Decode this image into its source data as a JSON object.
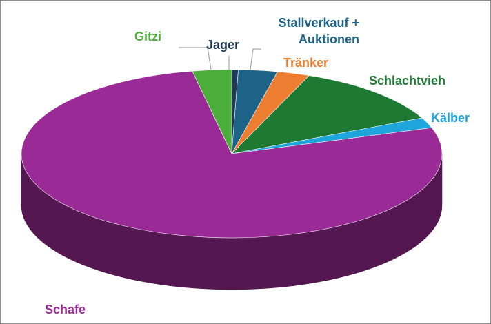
{
  "chart_data": {
    "type": "pie3d",
    "categories": [
      "Jager",
      "Stallverkauf + Auktionen",
      "Tränker",
      "Schlachtvieh",
      "Kälber",
      "Schafe",
      "Gitzi"
    ],
    "values": [
      0.5,
      3,
      2.5,
      12,
      2,
      77,
      3
    ],
    "colors": [
      "#1f3b57",
      "#1d6387",
      "#ed7d31",
      "#1e7a32",
      "#1ea5dc",
      "#9a2a95",
      "#4cae3a"
    ]
  }
}
